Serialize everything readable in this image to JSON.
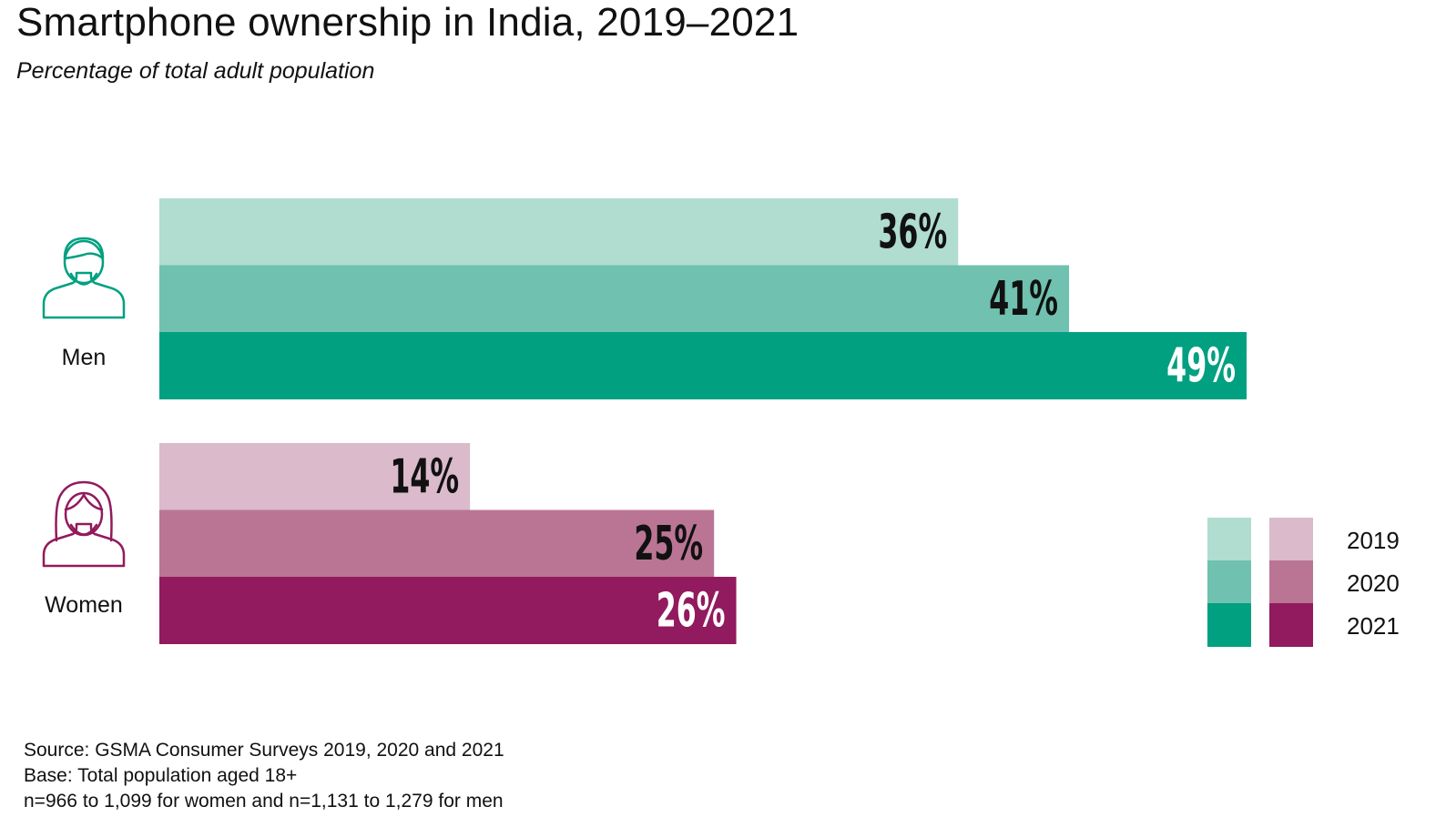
{
  "title": "Smartphone ownership in India, 2019–2021",
  "subtitle": "Percentage of total adult population",
  "chart_data": {
    "type": "bar",
    "orientation": "horizontal",
    "categories": [
      "Men",
      "Women"
    ],
    "series_years": [
      "2019",
      "2020",
      "2021"
    ],
    "groups": [
      {
        "name": "Men",
        "icon": "man-icon",
        "values": [
          36,
          41,
          49
        ],
        "labels": [
          "36%",
          "41%",
          "49%"
        ],
        "colors": [
          "#b1dcd0",
          "#70c1af",
          "#00a081"
        ]
      },
      {
        "name": "Women",
        "icon": "woman-icon",
        "values": [
          14,
          25,
          26
        ],
        "labels": [
          "14%",
          "25%",
          "26%"
        ],
        "colors": [
          "#dabacb",
          "#bb7594",
          "#921a5e"
        ]
      }
    ],
    "value_label_colors": [
      "#111111",
      "#111111",
      "#ffffff"
    ],
    "legend": {
      "placement": "bottom-right",
      "labels": [
        "2019",
        "2020",
        "2021"
      ]
    },
    "xlim": [
      0,
      49
    ],
    "grid": false,
    "axes_visible": false
  },
  "footer": {
    "source": "Source: GSMA Consumer Surveys 2019, 2020 and 2021",
    "base": "Base: Total population aged 18+",
    "sample": "n=966 to 1,099 for women and n=1,131 to 1,279 for men"
  }
}
